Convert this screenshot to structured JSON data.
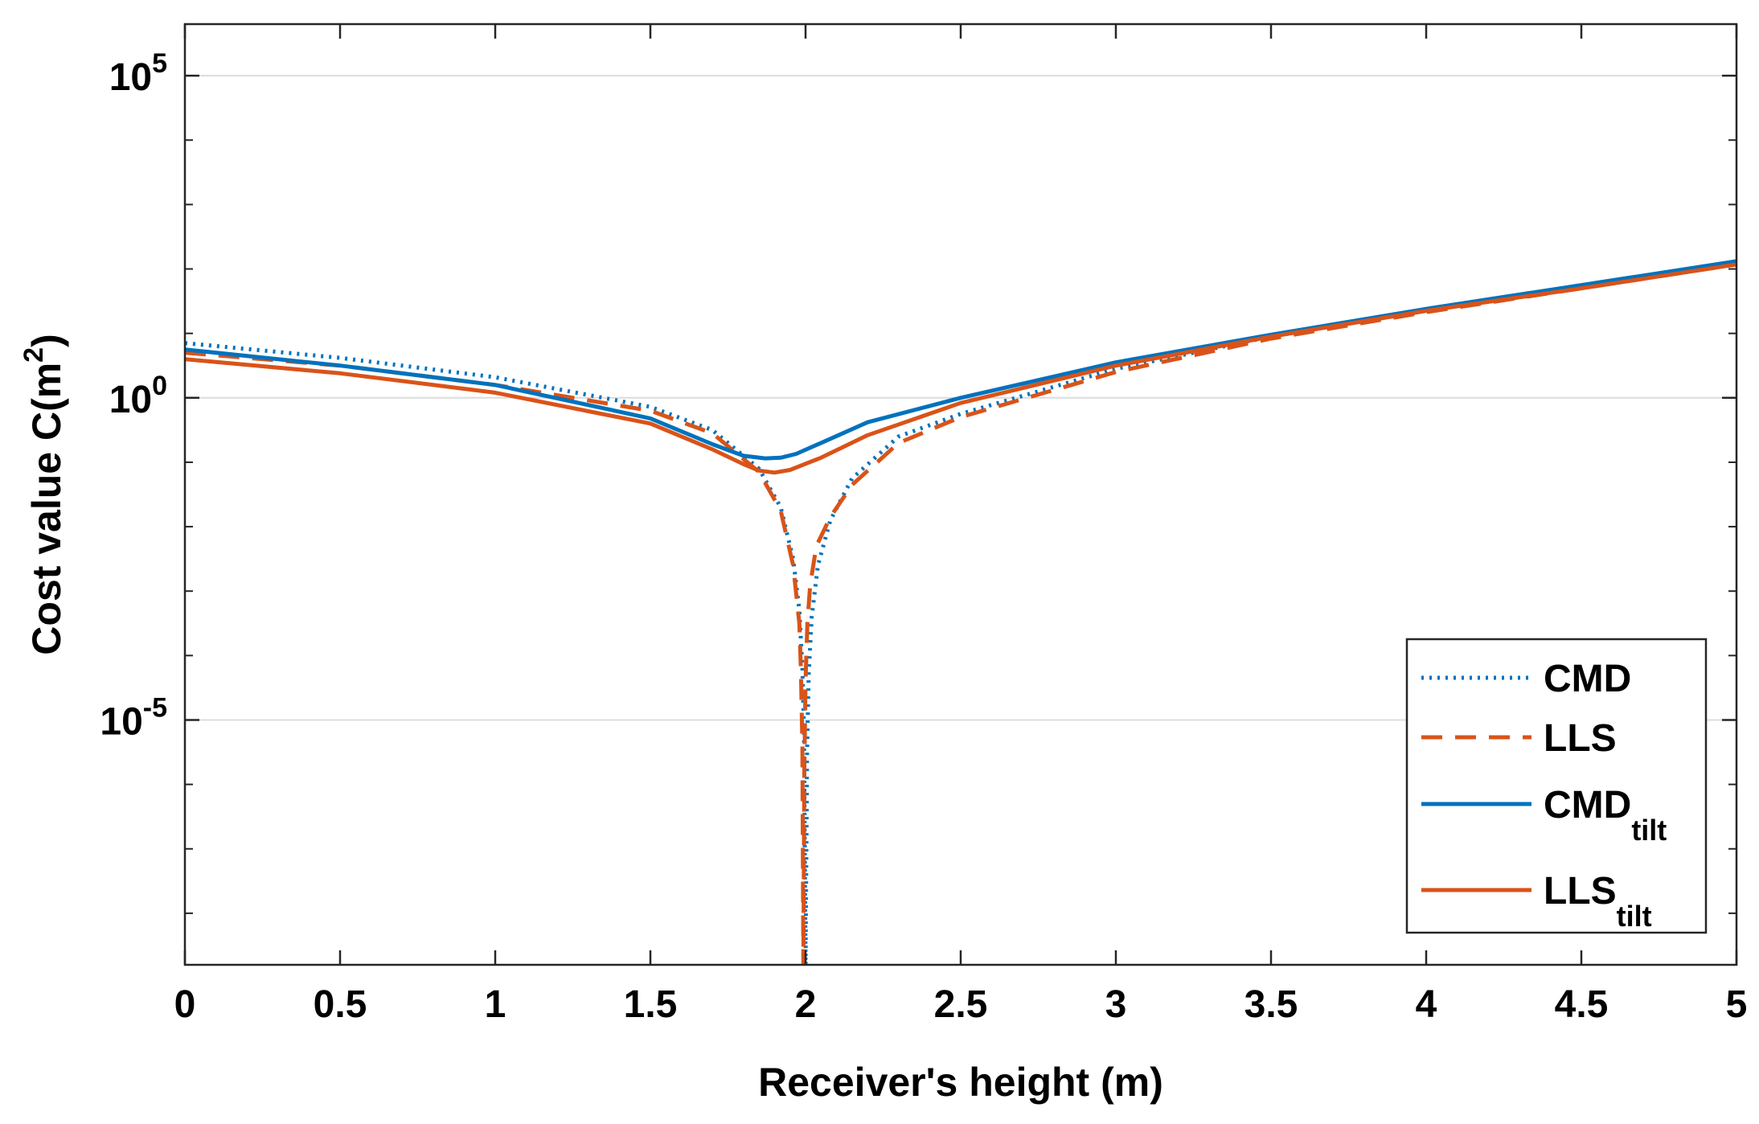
{
  "chart_data": {
    "type": "line",
    "title": "",
    "xlabel": "Receiver's height (m)",
    "ylabel": {
      "main": "Cost value C(m",
      "sup": "2",
      "close": ")"
    },
    "xscale": "linear",
    "yscale": "log",
    "xlim": [
      0,
      5
    ],
    "ylim_log10": [
      -8.8,
      5.8
    ],
    "xticks": [
      0,
      0.5,
      1,
      1.5,
      2,
      2.5,
      3,
      3.5,
      4,
      4.5,
      5
    ],
    "xtick_labels": [
      "0",
      "0.5",
      "1",
      "1.5",
      "2",
      "2.5",
      "3",
      "3.5",
      "4",
      "4.5",
      "5"
    ],
    "yticks_major": [
      {
        "log10": 5,
        "base": "10",
        "exp": "5"
      },
      {
        "log10": 0,
        "base": "10",
        "exp": "0"
      },
      {
        "log10": -5,
        "base": "10",
        "exp": "-5"
      }
    ],
    "yticks_minor_log10": [
      -8,
      -7,
      -6,
      -4,
      -3,
      -2,
      -1,
      1,
      2,
      3,
      4
    ],
    "grid": "major-y",
    "legend_position": "bottom-right",
    "series": [
      {
        "name": "CMD",
        "sub": "",
        "color": "#0072bd",
        "dash": "dotted",
        "x": [
          0,
          0.5,
          1,
          1.5,
          1.7,
          1.85,
          1.92,
          1.96,
          1.98,
          1.99,
          1.995,
          2,
          2.005,
          2.01,
          2.02,
          2.04,
          2.08,
          2.15,
          2.3,
          2.5,
          3,
          3.5,
          4,
          4.5,
          5
        ],
        "log10y": [
          0.85,
          0.62,
          0.32,
          -0.14,
          -0.5,
          -1.1,
          -1.7,
          -2.5,
          -3.3,
          -4.2,
          -5.2,
          -8.8,
          -5.5,
          -4.3,
          -3.4,
          -2.6,
          -1.9,
          -1.25,
          -0.6,
          -0.25,
          0.45,
          0.95,
          1.37,
          1.72,
          2.1
        ]
      },
      {
        "name": "LLS",
        "sub": "",
        "color": "#d95319",
        "dash": "dashed",
        "x": [
          0,
          0.5,
          1,
          1.5,
          1.7,
          1.85,
          1.92,
          1.96,
          1.98,
          1.985,
          1.99,
          1.993,
          1.996,
          2,
          2.006,
          2.015,
          2.035,
          2.08,
          2.15,
          2.3,
          2.5,
          3,
          3.5,
          4,
          4.5,
          5
        ],
        "log10y": [
          0.7,
          0.5,
          0.2,
          -0.2,
          -0.55,
          -1.15,
          -1.75,
          -2.6,
          -3.5,
          -4.2,
          -5.4,
          -8.8,
          -5.8,
          -4.4,
          -3.5,
          -2.9,
          -2.3,
          -1.85,
          -1.35,
          -0.7,
          -0.3,
          0.4,
          0.92,
          1.33,
          1.7,
          2.07
        ]
      },
      {
        "name": "CMD",
        "sub": "tilt",
        "color": "#0072bd",
        "dash": "solid",
        "x": [
          0,
          0.5,
          1,
          1.5,
          1.7,
          1.8,
          1.87,
          1.92,
          1.97,
          2.05,
          2.2,
          2.5,
          3,
          3.5,
          4,
          4.5,
          5
        ],
        "log10y": [
          0.75,
          0.5,
          0.2,
          -0.32,
          -0.72,
          -0.9,
          -0.94,
          -0.93,
          -0.87,
          -0.7,
          -0.38,
          0.0,
          0.55,
          0.98,
          1.38,
          1.75,
          2.12
        ]
      },
      {
        "name": "LLS",
        "sub": "tilt",
        "color": "#d95319",
        "dash": "solid",
        "x": [
          0,
          0.5,
          1,
          1.5,
          1.7,
          1.8,
          1.85,
          1.9,
          1.95,
          2.05,
          2.2,
          2.5,
          3,
          3.5,
          4,
          4.5,
          5
        ],
        "log10y": [
          0.6,
          0.38,
          0.08,
          -0.4,
          -0.8,
          -1.03,
          -1.13,
          -1.16,
          -1.12,
          -0.93,
          -0.58,
          -0.08,
          0.5,
          0.95,
          1.35,
          1.7,
          2.07
        ]
      }
    ]
  }
}
